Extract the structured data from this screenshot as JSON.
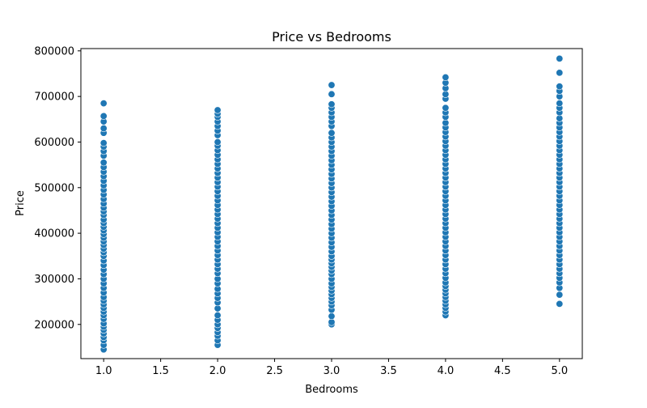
{
  "chart_data": {
    "type": "scatter",
    "title": "Price vs Bedrooms",
    "xlabel": "Bedrooms",
    "ylabel": "Price",
    "xlim": [
      0.8,
      5.2
    ],
    "ylim": [
      125000,
      805000
    ],
    "xticks": [
      1.0,
      1.5,
      2.0,
      2.5,
      3.0,
      3.5,
      4.0,
      4.5,
      5.0
    ],
    "xtick_labels": [
      "1.0",
      "1.5",
      "2.0",
      "2.5",
      "3.0",
      "3.5",
      "4.0",
      "4.5",
      "5.0"
    ],
    "yticks": [
      200000,
      300000,
      400000,
      500000,
      600000,
      700000,
      800000
    ],
    "ytick_labels": [
      "200000",
      "300000",
      "400000",
      "500000",
      "600000",
      "700000",
      "800000"
    ],
    "grid": false,
    "marker_color": "#1f77b4",
    "marker_edge_color": "#ffffff",
    "series": [
      {
        "x": 1.0,
        "values": [
          145000,
          155000,
          165000,
          172000,
          180000,
          188000,
          195000,
          202000,
          212000,
          220000,
          228000,
          236000,
          244000,
          252000,
          260000,
          270000,
          280000,
          290000,
          300000,
          310000,
          320000,
          330000,
          340000,
          350000,
          358000,
          366000,
          374000,
          382000,
          390000,
          398000,
          406000,
          414000,
          422000,
          430000,
          440000,
          448000,
          456000,
          465000,
          475000,
          485000,
          495000,
          505000,
          515000,
          525000,
          535000,
          545000,
          555000,
          570000,
          580000,
          590000,
          598000,
          620000,
          630000,
          645000,
          657000,
          685000
        ]
      },
      {
        "x": 2.0,
        "values": [
          155000,
          165000,
          175000,
          183000,
          192000,
          200000,
          210000,
          220000,
          235000,
          248000,
          258000,
          268000,
          278000,
          290000,
          300000,
          312000,
          322000,
          332000,
          342000,
          352000,
          362000,
          372000,
          382000,
          392000,
          402000,
          412000,
          422000,
          432000,
          442000,
          452000,
          462000,
          472000,
          482000,
          492000,
          502000,
          512000,
          522000,
          532000,
          542000,
          552000,
          562000,
          572000,
          582000,
          592000,
          600000,
          615000,
          625000,
          635000,
          645000,
          655000,
          662000,
          670000
        ]
      },
      {
        "x": 3.0,
        "values": [
          200000,
          205000,
          218000,
          232000,
          242000,
          250000,
          258000,
          266000,
          274000,
          282000,
          290000,
          300000,
          310000,
          318000,
          326000,
          334000,
          342000,
          350000,
          360000,
          370000,
          380000,
          390000,
          400000,
          410000,
          420000,
          430000,
          440000,
          450000,
          460000,
          470000,
          480000,
          490000,
          500000,
          510000,
          520000,
          530000,
          540000,
          550000,
          560000,
          570000,
          580000,
          590000,
          600000,
          610000,
          620000,
          635000,
          645000,
          655000,
          665000,
          675000,
          683000,
          705000,
          725000
        ]
      },
      {
        "x": 4.0,
        "values": [
          220000,
          228000,
          236000,
          244000,
          252000,
          260000,
          268000,
          276000,
          284000,
          292000,
          302000,
          312000,
          322000,
          332000,
          342000,
          352000,
          362000,
          372000,
          382000,
          392000,
          402000,
          412000,
          422000,
          432000,
          442000,
          452000,
          462000,
          472000,
          482000,
          492000,
          502000,
          512000,
          522000,
          532000,
          542000,
          552000,
          562000,
          572000,
          582000,
          592000,
          602000,
          612000,
          622000,
          632000,
          642000,
          655000,
          665000,
          675000,
          695000,
          705000,
          718000,
          730000,
          742000
        ]
      },
      {
        "x": 5.0,
        "values": [
          245000,
          265000,
          280000,
          292000,
          302000,
          312000,
          322000,
          332000,
          342000,
          352000,
          362000,
          372000,
          382000,
          392000,
          402000,
          412000,
          422000,
          432000,
          442000,
          452000,
          462000,
          472000,
          482000,
          492000,
          502000,
          512000,
          522000,
          532000,
          542000,
          552000,
          562000,
          572000,
          582000,
          592000,
          602000,
          612000,
          622000,
          632000,
          642000,
          652000,
          665000,
          675000,
          685000,
          700000,
          712000,
          722000,
          752000,
          783000
        ]
      }
    ]
  }
}
